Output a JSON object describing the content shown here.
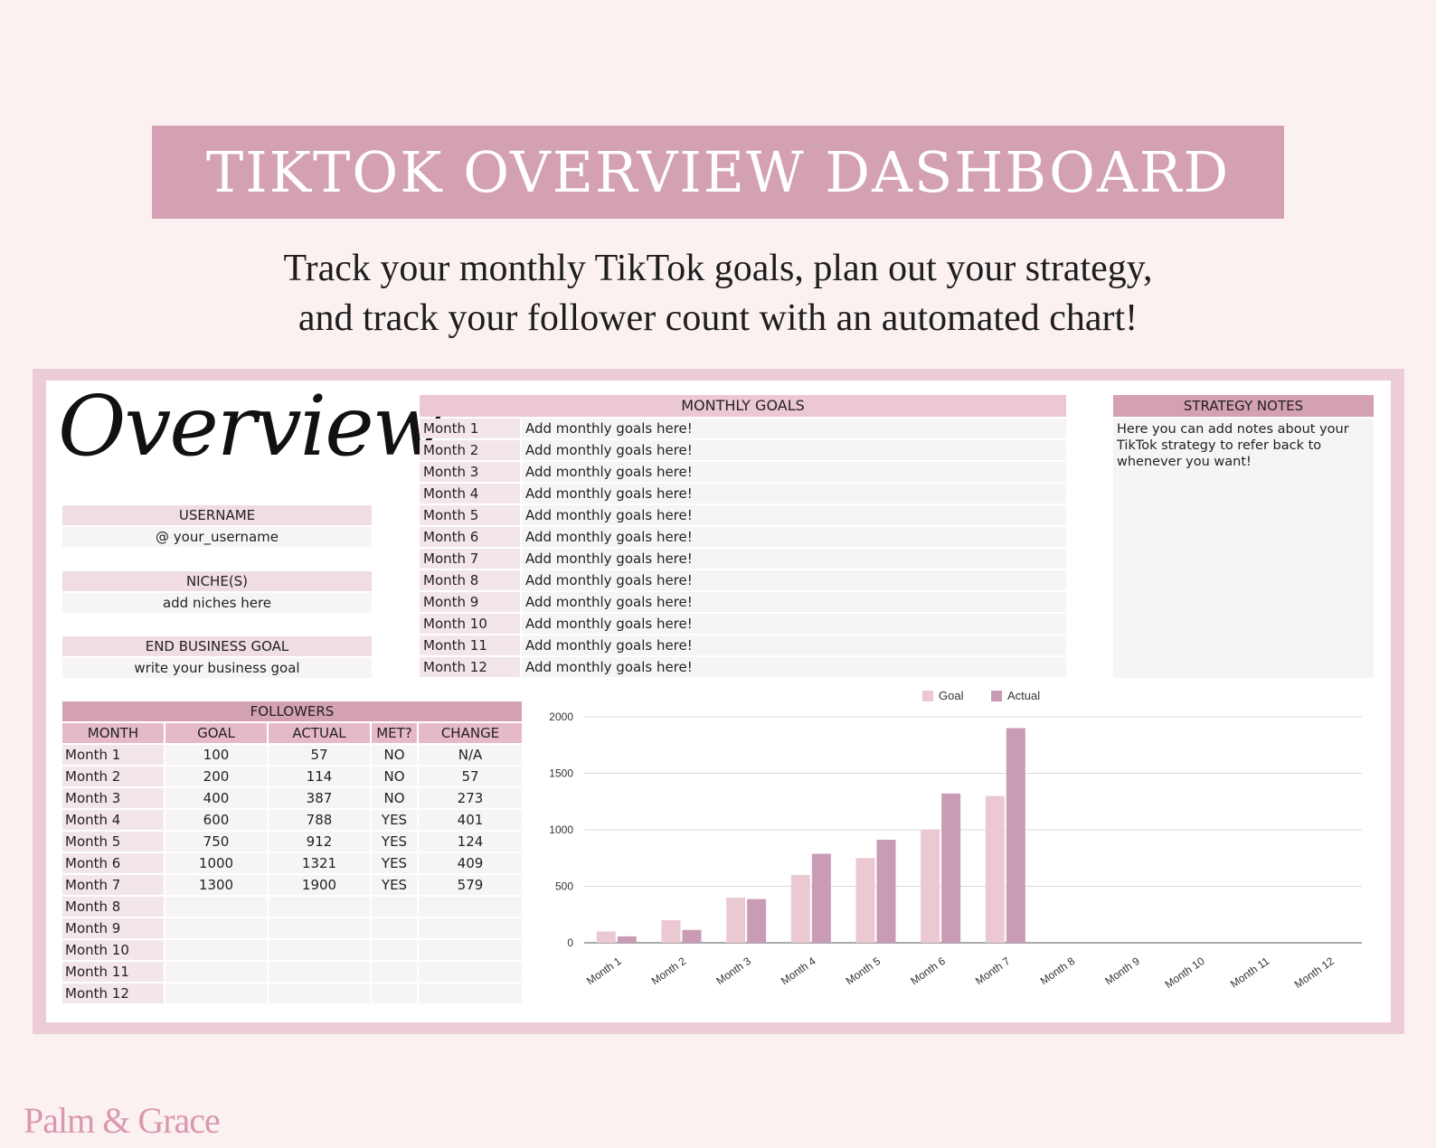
{
  "banner": {
    "title": "TIKTOK OVERVIEW DASHBOARD"
  },
  "subtitle": {
    "line1": "Track your monthly TikTok goals, plan out your strategy,",
    "line2": "and track your follower count with an automated chart!"
  },
  "overview": {
    "heading": "Overview",
    "username_label": "USERNAME",
    "username_value": "@ your_username",
    "niche_label": "NICHE(S)",
    "niche_value": "add niches here",
    "goal_label": "END BUSINESS GOAL",
    "goal_value": "write your business goal"
  },
  "monthly_goals": {
    "header": "MONTHLY GOALS",
    "rows": [
      {
        "month": "Month 1",
        "goal": "Add monthly goals here!"
      },
      {
        "month": "Month 2",
        "goal": "Add monthly goals here!"
      },
      {
        "month": "Month 3",
        "goal": "Add monthly goals here!"
      },
      {
        "month": "Month 4",
        "goal": "Add monthly goals here!"
      },
      {
        "month": "Month 5",
        "goal": "Add monthly goals here!"
      },
      {
        "month": "Month 6",
        "goal": "Add monthly goals here!"
      },
      {
        "month": "Month 7",
        "goal": "Add monthly goals here!"
      },
      {
        "month": "Month 8",
        "goal": "Add monthly goals here!"
      },
      {
        "month": "Month 9",
        "goal": "Add monthly goals here!"
      },
      {
        "month": "Month 10",
        "goal": "Add monthly goals here!"
      },
      {
        "month": "Month 11",
        "goal": "Add monthly goals here!"
      },
      {
        "month": "Month 12",
        "goal": "Add monthly goals here!"
      }
    ]
  },
  "strategy_notes": {
    "header": "STRATEGY NOTES",
    "text": "Here you can add notes about your TikTok strategy to refer back to whenever you want!"
  },
  "followers": {
    "title": "FOLLOWERS",
    "columns": [
      "MONTH",
      "GOAL",
      "ACTUAL",
      "MET?",
      "CHANGE"
    ],
    "rows": [
      [
        "Month 1",
        "100",
        "57",
        "NO",
        "N/A"
      ],
      [
        "Month 2",
        "200",
        "114",
        "NO",
        "57"
      ],
      [
        "Month 3",
        "400",
        "387",
        "NO",
        "273"
      ],
      [
        "Month 4",
        "600",
        "788",
        "YES",
        "401"
      ],
      [
        "Month 5",
        "750",
        "912",
        "YES",
        "124"
      ],
      [
        "Month 6",
        "1000",
        "1321",
        "YES",
        "409"
      ],
      [
        "Month 7",
        "1300",
        "1900",
        "YES",
        "579"
      ],
      [
        "Month 8",
        "",
        "",
        "",
        ""
      ],
      [
        "Month 9",
        "",
        "",
        "",
        ""
      ],
      [
        "Month 10",
        "",
        "",
        "",
        ""
      ],
      [
        "Month 11",
        "",
        "",
        "",
        ""
      ],
      [
        "Month 12",
        "",
        "",
        "",
        ""
      ]
    ]
  },
  "chart_data": {
    "type": "bar",
    "categories": [
      "Month 1",
      "Month 2",
      "Month 3",
      "Month 4",
      "Month 5",
      "Month 6",
      "Month 7",
      "Month 8",
      "Month 9",
      "Month 10",
      "Month 11",
      "Month 12"
    ],
    "series": [
      {
        "name": "Goal",
        "color": "#ebc9d2",
        "values": [
          100,
          200,
          400,
          600,
          750,
          1000,
          1300,
          null,
          null,
          null,
          null,
          null
        ]
      },
      {
        "name": "Actual",
        "color": "#c99bb5",
        "values": [
          57,
          114,
          387,
          788,
          912,
          1321,
          1900,
          null,
          null,
          null,
          null,
          null
        ]
      }
    ],
    "yticks": [
      0,
      500,
      1000,
      1500,
      2000
    ],
    "ylim": [
      0,
      2000
    ],
    "grid": true,
    "legend": "top-center",
    "title": "",
    "xlabel": "",
    "ylabel": ""
  },
  "brand": {
    "name": "Palm & Grace"
  },
  "colors": {
    "accent": "#d4a0b4",
    "background": "#fcf1f1",
    "frame": "#ecccd8"
  }
}
